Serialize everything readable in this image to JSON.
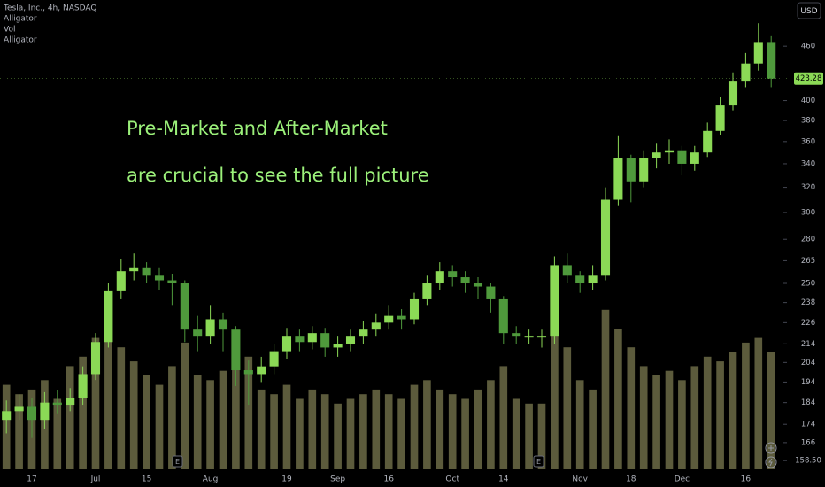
{
  "chart_data": {
    "type": "candlestick",
    "title": "Tesla, Inc., 4h, NASDAQ",
    "indicators": [
      "Alligator",
      "Vol",
      "Alligator"
    ],
    "currency": "USD",
    "annotation_lines": [
      "Pre-Market and After-Market",
      "are crucial to see the full picture"
    ],
    "event_markers": [
      "E",
      "E"
    ],
    "categories": [
      null,
      null,
      "17",
      null,
      null,
      null,
      null,
      "Jul",
      null,
      null,
      null,
      "15",
      null,
      null,
      null,
      null,
      "Aug",
      null,
      null,
      null,
      null,
      null,
      "19",
      null,
      null,
      null,
      "Sep",
      null,
      null,
      null,
      "16",
      null,
      null,
      null,
      null,
      "Oct",
      null,
      null,
      null,
      "14",
      null,
      null,
      null,
      null,
      null,
      "Nov",
      null,
      null,
      null,
      "18",
      null,
      null,
      null,
      "Dec",
      null,
      null,
      null,
      null,
      "16",
      null,
      null
    ],
    "open": [
      176,
      180,
      182,
      176,
      184,
      183,
      186,
      198,
      215,
      245,
      258,
      260,
      255,
      252,
      250,
      222,
      218,
      228,
      222,
      200,
      198,
      202,
      210,
      218,
      215,
      220,
      212,
      214,
      218,
      222,
      226,
      230,
      228,
      240,
      250,
      258,
      254,
      250,
      248,
      240,
      220,
      218,
      218,
      218,
      262,
      255,
      250,
      255,
      310,
      345,
      325,
      345,
      350,
      352,
      340,
      350,
      370,
      395,
      420,
      440,
      465
    ],
    "high": [
      185,
      188,
      186,
      189,
      190,
      191,
      202,
      220,
      250,
      266,
      270,
      264,
      260,
      256,
      252,
      230,
      236,
      232,
      224,
      205,
      207,
      214,
      223,
      222,
      224,
      223,
      218,
      222,
      227,
      231,
      236,
      234,
      244,
      255,
      264,
      262,
      258,
      254,
      250,
      242,
      224,
      222,
      222,
      268,
      270,
      258,
      262,
      320,
      365,
      348,
      352,
      358,
      362,
      356,
      356,
      378,
      404,
      430,
      452,
      488,
      472
    ],
    "low": [
      170,
      176,
      168,
      172,
      179,
      180,
      183,
      195,
      212,
      240,
      252,
      250,
      246,
      236,
      215,
      210,
      214,
      210,
      192,
      183,
      194,
      198,
      206,
      210,
      211,
      207,
      207,
      210,
      214,
      218,
      222,
      222,
      225,
      236,
      246,
      248,
      244,
      240,
      232,
      214,
      214,
      214,
      212,
      214,
      250,
      244,
      246,
      252,
      305,
      308,
      320,
      336,
      340,
      330,
      334,
      346,
      366,
      390,
      414,
      432,
      414
    ],
    "close": [
      180,
      182,
      176,
      184,
      183,
      186,
      198,
      215,
      245,
      258,
      260,
      255,
      252,
      250,
      222,
      218,
      228,
      222,
      200,
      198,
      202,
      210,
      218,
      215,
      220,
      212,
      214,
      218,
      222,
      226,
      230,
      228,
      240,
      250,
      258,
      254,
      250,
      248,
      240,
      220,
      218,
      218,
      218,
      262,
      255,
      250,
      255,
      310,
      345,
      325,
      345,
      350,
      352,
      340,
      350,
      370,
      395,
      420,
      440,
      465,
      423.28
    ],
    "volume": [
      90,
      80,
      85,
      95,
      75,
      110,
      120,
      140,
      150,
      130,
      115,
      100,
      90,
      110,
      135,
      100,
      95,
      105,
      140,
      120,
      85,
      80,
      90,
      75,
      85,
      80,
      70,
      75,
      80,
      85,
      80,
      75,
      90,
      95,
      85,
      80,
      75,
      85,
      95,
      110,
      75,
      70,
      70,
      180,
      130,
      95,
      85,
      170,
      150,
      130,
      110,
      100,
      105,
      95,
      110,
      120,
      115,
      125,
      135,
      140,
      125
    ],
    "up_color": "#8bd956",
    "down_color": "#4f9a3c",
    "volume_color": "#5c5b3c",
    "log_scale": true,
    "ylim": [
      155,
      518
    ],
    "vlim": [
      0,
      500
    ],
    "yticks": [
      460,
      400,
      380,
      360,
      340,
      320,
      300,
      280,
      265,
      250,
      238,
      226,
      214,
      204,
      194,
      184,
      174,
      166,
      {
        "value": 158.5,
        "label": "158.50"
      }
    ],
    "last_price": 423.28
  }
}
